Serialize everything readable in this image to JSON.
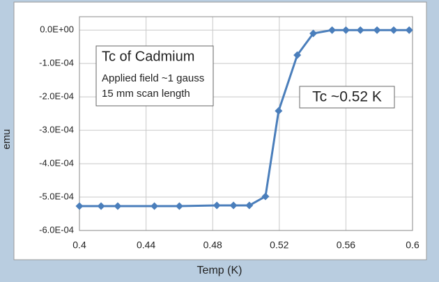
{
  "chart_data": {
    "type": "line",
    "x_label": "Temp (K)",
    "y_label": "emu",
    "x": [
      0.4,
      0.413,
      0.423,
      0.445,
      0.46,
      0.4825,
      0.4925,
      0.502,
      0.5117,
      0.5196,
      0.5308,
      0.5404,
      0.5517,
      0.56,
      0.5687,
      0.5787,
      0.5887,
      0.598
    ],
    "series": [
      {
        "name": "Cadmium",
        "color": "#4a7ebb",
        "values": [
          -0.000527,
          -0.000527,
          -0.000527,
          -0.000527,
          -0.000527,
          -0.000525,
          -0.000525,
          -0.000525,
          -0.000498,
          -0.000242,
          -7.5e-05,
          -1e-05,
          0,
          0,
          0,
          0,
          0,
          0
        ]
      }
    ],
    "xlim": [
      0.4,
      0.6
    ],
    "xticks": [
      0.4,
      0.44,
      0.48,
      0.52,
      0.56,
      0.6
    ],
    "ylim": [
      -0.0006,
      4e-05
    ],
    "yticks": [
      {
        "value": 0,
        "label": "0.0E+00"
      },
      {
        "value": -0.0001,
        "label": "-1.0E-04"
      },
      {
        "value": -0.0002,
        "label": "-2.0E-04"
      },
      {
        "value": -0.0003,
        "label": "-3.0E-04"
      },
      {
        "value": -0.0004,
        "label": "-4.0E-04"
      },
      {
        "value": -0.0005,
        "label": "-5.0E-04"
      },
      {
        "value": -0.0006,
        "label": "-6.0E-04"
      }
    ],
    "grid": true,
    "annotations": [
      "Tc of Cadmium",
      "Applied field ~1 gauss",
      "15 mm scan length",
      "Tc ~0.52 K"
    ]
  }
}
